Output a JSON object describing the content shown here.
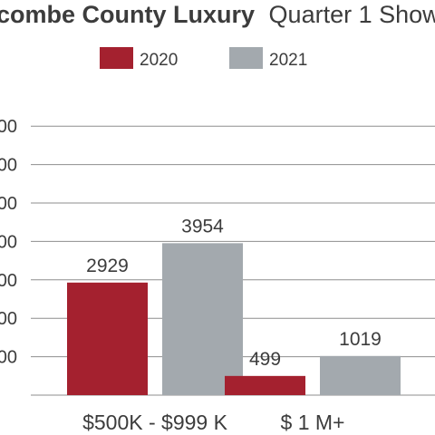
{
  "chart_data": {
    "type": "bar",
    "title_bold": "combe County Luxury",
    "title_rest": "Quarter 1 Show",
    "categories": [
      "$500K - $999 K",
      "$ 1 M+"
    ],
    "series": [
      {
        "name": "2020",
        "values": [
          2929,
          499
        ],
        "color": "#a4212f"
      },
      {
        "name": "2021",
        "values": [
          3954,
          1019
        ],
        "color": "#a3a9ae"
      }
    ],
    "y_tick_labels": [
      "00",
      "00",
      "00",
      "00",
      "00",
      "00",
      "00"
    ],
    "ylim": [
      0,
      7000
    ],
    "y_step": 1000,
    "grid": true,
    "legend_position": "top-center"
  }
}
